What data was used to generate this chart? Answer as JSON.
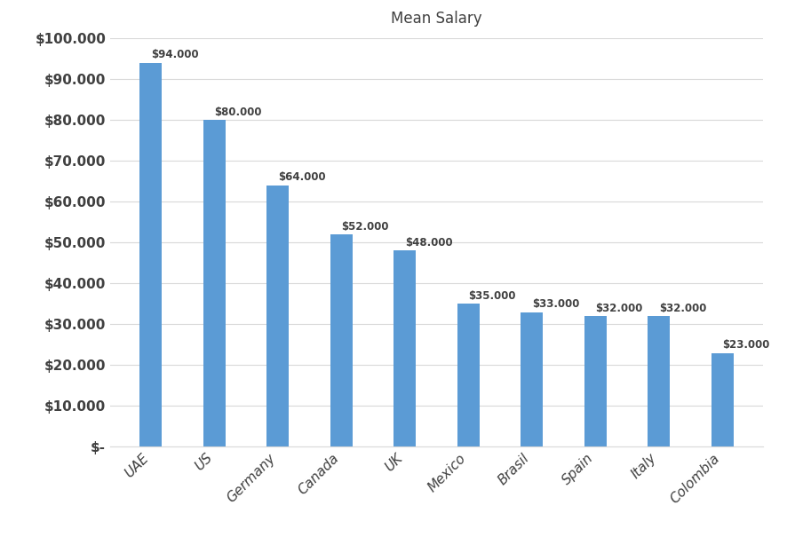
{
  "title": "Mean Salary",
  "categories": [
    "UAE",
    "US",
    "Germany",
    "Canada",
    "UK",
    "Mexico",
    "Brasil",
    "Spain",
    "Italy",
    "Colombia"
  ],
  "values": [
    94000,
    80000,
    64000,
    52000,
    48000,
    35000,
    33000,
    32000,
    32000,
    23000
  ],
  "bar_color": "#5b9bd5",
  "background_color": "#ffffff",
  "ylim": [
    0,
    100000
  ],
  "ytick_step": 10000,
  "title_fontsize": 12,
  "label_fontsize": 8.5,
  "tick_fontsize": 11,
  "grid_color": "#d9d9d9",
  "text_color": "#404040"
}
